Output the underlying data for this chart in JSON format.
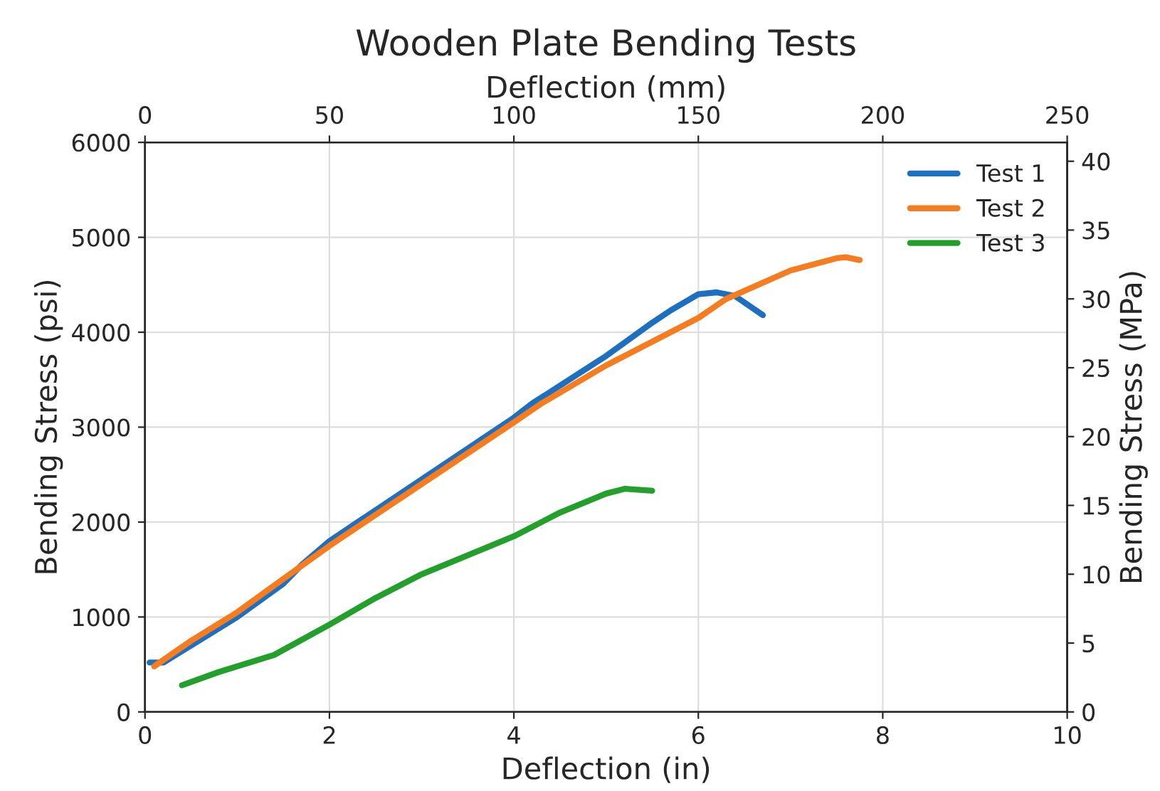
{
  "chart_data": {
    "type": "line",
    "title": "Wooden Plate Bending Tests",
    "xlabel": "Deflection (in)",
    "ylabel": "Bending Stress (psi)",
    "y2label": "Bending Stress (MPa)",
    "x2label": "Deflection (mm)",
    "xlim": [
      0,
      10
    ],
    "xticks": [
      0,
      2,
      4,
      6,
      8,
      10
    ],
    "ylim": [
      0,
      6000
    ],
    "yticks": [
      0,
      1000,
      2000,
      3000,
      4000,
      5000,
      6000
    ],
    "x2lim": [
      0,
      250
    ],
    "x2ticks": [
      0,
      50,
      100,
      150,
      200,
      250
    ],
    "y2lim": [
      0,
      41.37
    ],
    "y2ticks": [
      0,
      5,
      10,
      15,
      20,
      25,
      30,
      35,
      40
    ],
    "grid": true,
    "legend": "top right",
    "series": [
      {
        "name": "Test 1",
        "color": "#1f6fbf",
        "x": [
          0.05,
          0.2,
          0.5,
          1,
          1.5,
          1.7,
          2,
          3,
          4,
          4.2,
          5,
          5.5,
          5.7,
          6,
          6.2,
          6.4,
          6.7
        ],
        "values": [
          520,
          520,
          700,
          1000,
          1350,
          1550,
          1800,
          2450,
          3100,
          3250,
          3750,
          4100,
          4230,
          4400,
          4420,
          4380,
          4180
        ]
      },
      {
        "name": "Test 2",
        "color": "#f57c20",
        "x": [
          0.1,
          0.5,
          1,
          1.5,
          2,
          3,
          4,
          4.3,
          5,
          6,
          6.3,
          7,
          7.5,
          7.6,
          7.75
        ],
        "values": [
          480,
          750,
          1050,
          1400,
          1750,
          2400,
          3050,
          3250,
          3650,
          4150,
          4350,
          4650,
          4780,
          4790,
          4760
        ]
      },
      {
        "name": "Test 3",
        "color": "#23a02c",
        "x": [
          0.4,
          0.8,
          1.4,
          2,
          2.5,
          3,
          3.5,
          4,
          4.5,
          5,
          5.2,
          5.5
        ],
        "values": [
          280,
          420,
          600,
          920,
          1200,
          1450,
          1650,
          1850,
          2100,
          2300,
          2350,
          2330
        ]
      }
    ]
  }
}
